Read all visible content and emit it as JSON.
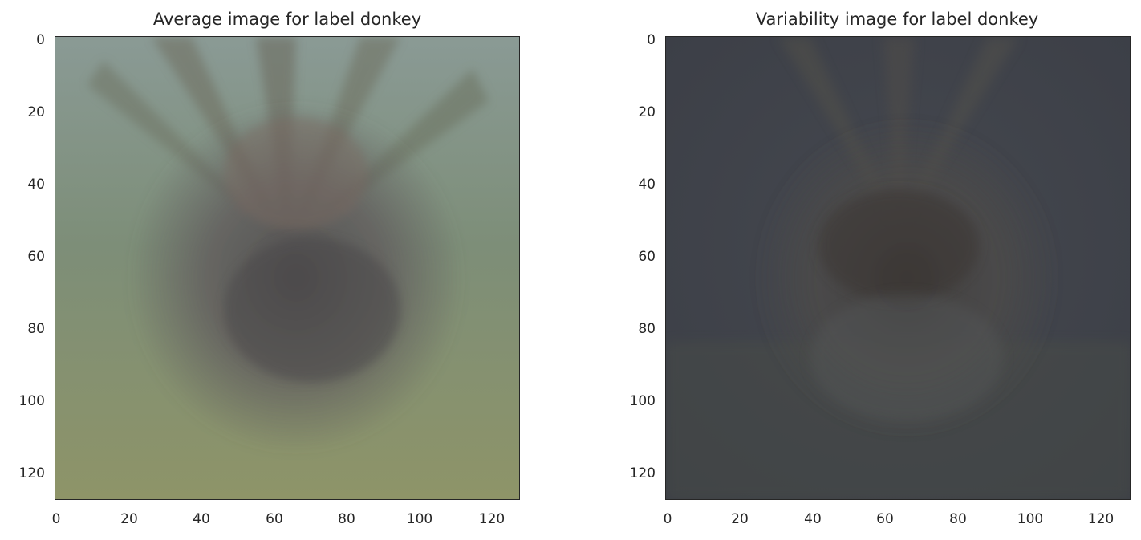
{
  "chart_data": [
    {
      "type": "heatmap",
      "title": "Average image for label donkey",
      "xlabel": "",
      "ylabel": "",
      "xlim": [
        0,
        128
      ],
      "ylim": [
        128,
        0
      ],
      "x_ticks": [
        "0",
        "20",
        "40",
        "60",
        "80",
        "100",
        "120"
      ],
      "y_ticks": [
        "0",
        "20",
        "40",
        "60",
        "80",
        "100",
        "120"
      ],
      "grid": false,
      "colors": {
        "sky": "#8a9a95",
        "upper_green": "#7d8e78",
        "lower_green": "#8e9468",
        "body": "#5f5a5c",
        "body_dark": "#4e4a4c"
      }
    },
    {
      "type": "heatmap",
      "title": "Variability image for label donkey",
      "xlabel": "",
      "ylabel": "",
      "xlim": [
        0,
        128
      ],
      "ylim": [
        128,
        0
      ],
      "x_ticks": [
        "0",
        "20",
        "40",
        "60",
        "80",
        "100",
        "120"
      ],
      "y_ticks": [
        "0",
        "20",
        "40",
        "60",
        "80",
        "100",
        "120"
      ],
      "grid": false,
      "colors": {
        "background": "#45484f",
        "edge": "#3b3e46",
        "body": "#4f4c47",
        "body_dark": "#3d3a38",
        "lower": "#4a4d47"
      }
    }
  ]
}
